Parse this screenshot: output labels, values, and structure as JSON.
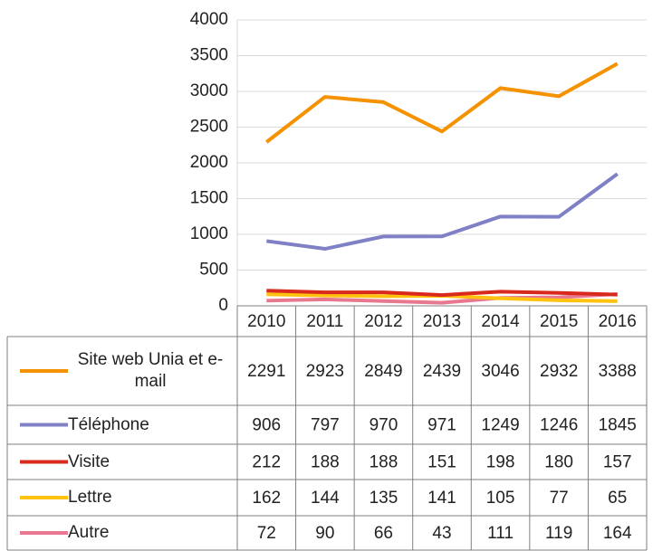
{
  "chart_data": {
    "type": "line",
    "categories": [
      "2010",
      "2011",
      "2012",
      "2013",
      "2014",
      "2015",
      "2016"
    ],
    "series": [
      {
        "name": "Site web Unia et e-mail",
        "color": "#f59200",
        "values": [
          2291,
          2923,
          2849,
          2439,
          3046,
          2932,
          3388
        ]
      },
      {
        "name": "Téléphone",
        "color": "#7f80c6",
        "values": [
          906,
          797,
          970,
          971,
          1249,
          1246,
          1845
        ]
      },
      {
        "name": "Visite",
        "color": "#d9281c",
        "values": [
          212,
          188,
          188,
          151,
          198,
          180,
          157
        ]
      },
      {
        "name": "Lettre",
        "color": "#ffc20e",
        "values": [
          162,
          144,
          135,
          141,
          105,
          77,
          65
        ]
      },
      {
        "name": "Autre",
        "color": "#e87890",
        "values": [
          72,
          90,
          66,
          43,
          111,
          119,
          164
        ]
      }
    ],
    "ylim": [
      0,
      4000
    ],
    "yticks": [
      0,
      500,
      1000,
      1500,
      2000,
      2500,
      3000,
      3500,
      4000
    ],
    "grid": true,
    "data_table": true
  }
}
